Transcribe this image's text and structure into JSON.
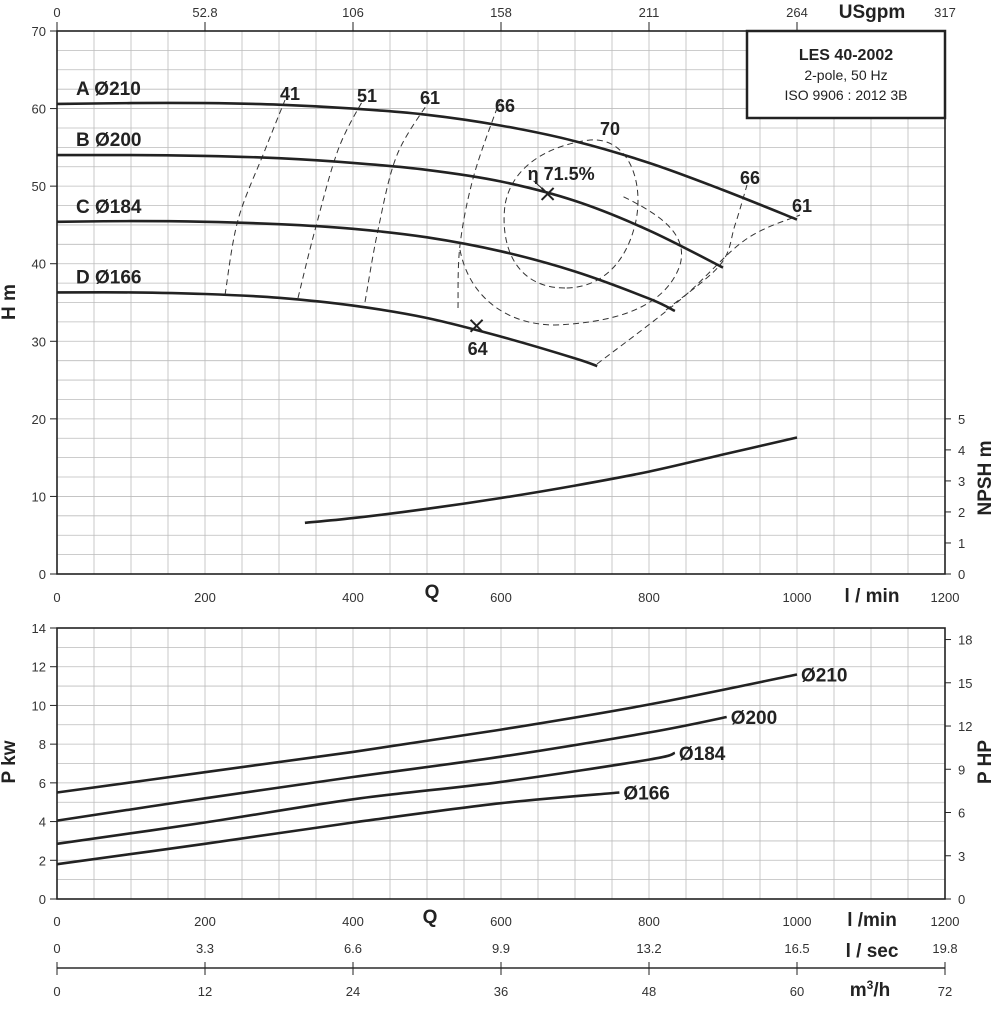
{
  "chart_data": [
    {
      "id": "head",
      "type": "line",
      "title_box": [
        "LES 40-2002",
        "2-pole, 50 Hz",
        "ISO 9906 : 2012 3B"
      ],
      "xlabel": "Q",
      "x_unit": "l / min",
      "ylabel": "H m",
      "y2label": "NPSH m",
      "xlim": [
        0,
        1200
      ],
      "ylim": [
        0,
        70
      ],
      "y2lim": [
        0,
        17.5
      ],
      "grid": true,
      "x_ticks": [
        0,
        200,
        400,
        600,
        800,
        1000,
        1200
      ],
      "y_ticks": [
        0,
        10,
        20,
        30,
        40,
        50,
        60,
        70
      ],
      "y2_ticks": [
        0,
        1,
        2,
        3,
        4,
        5
      ],
      "top_axis": {
        "unit": "USgpm",
        "ticks": [
          "0",
          "52.8",
          "106",
          "158",
          "211",
          "264",
          "317"
        ]
      },
      "series": [
        {
          "name": "A Ø210",
          "x": [
            0,
            100,
            200,
            300,
            400,
            500,
            600,
            700,
            800,
            900,
            1000
          ],
          "y": [
            60.6,
            60.7,
            60.7,
            60.5,
            60.0,
            59.2,
            57.8,
            55.8,
            53.0,
            49.5,
            45.7
          ]
        },
        {
          "name": "B Ø200",
          "x": [
            0,
            100,
            200,
            300,
            400,
            500,
            600,
            700,
            800,
            900
          ],
          "y": [
            54.0,
            54.0,
            53.9,
            53.6,
            53.0,
            52.1,
            50.6,
            48.1,
            44.3,
            39.5
          ]
        },
        {
          "name": "C Ø184",
          "x": [
            0,
            100,
            200,
            300,
            400,
            500,
            600,
            700,
            800,
            835
          ],
          "y": [
            45.4,
            45.5,
            45.4,
            45.1,
            44.5,
            43.4,
            41.6,
            39.0,
            35.5,
            33.9
          ]
        },
        {
          "name": "D Ø166",
          "x": [
            0,
            100,
            200,
            300,
            400,
            500,
            600,
            700,
            730
          ],
          "y": [
            36.3,
            36.3,
            36.1,
            35.6,
            34.6,
            33.0,
            30.6,
            27.8,
            26.8
          ]
        }
      ],
      "npsh": {
        "x": [
          335,
          400,
          500,
          600,
          700,
          800,
          900,
          1000
        ],
        "y": [
          1.65,
          1.8,
          2.1,
          2.45,
          2.85,
          3.3,
          3.85,
          4.4
        ]
      },
      "efficiency_labels": [
        "41",
        "51",
        "61",
        "66",
        "70",
        "66",
        "61"
      ],
      "best_efficiency": {
        "label": "η 71.5%",
        "x": 663,
        "y": 49
      },
      "marker": {
        "label": "64",
        "x": 567,
        "y": 32
      }
    },
    {
      "id": "power",
      "type": "line",
      "xlabel": "Q",
      "ylabel": "P kw",
      "y2label": "P HP",
      "xlim": [
        0,
        1200
      ],
      "ylim": [
        0,
        14
      ],
      "y2lim": [
        0,
        18.8
      ],
      "grid": true,
      "x_ticks": [
        0,
        200,
        400,
        600,
        800,
        1000,
        1200
      ],
      "y_ticks": [
        0,
        2,
        4,
        6,
        8,
        10,
        12,
        14
      ],
      "y2_ticks": [
        0,
        3,
        6,
        9,
        12,
        15,
        18
      ],
      "series": [
        {
          "name": "Ø210",
          "x": [
            0,
            200,
            400,
            600,
            800,
            1000
          ],
          "y": [
            5.5,
            6.55,
            7.6,
            8.75,
            10.05,
            11.6
          ]
        },
        {
          "name": "Ø200",
          "x": [
            0,
            200,
            400,
            600,
            800,
            905
          ],
          "y": [
            4.05,
            5.2,
            6.3,
            7.35,
            8.6,
            9.4
          ]
        },
        {
          "name": "Ø184",
          "x": [
            0,
            200,
            400,
            600,
            800,
            835
          ],
          "y": [
            2.85,
            3.95,
            5.15,
            6.05,
            7.2,
            7.55
          ]
        },
        {
          "name": "Ø166",
          "x": [
            0,
            200,
            400,
            600,
            760
          ],
          "y": [
            1.8,
            2.85,
            3.95,
            4.95,
            5.5
          ]
        }
      ]
    }
  ],
  "bottom_axes": {
    "q_label": "Q",
    "lmin_unit": "l /min",
    "lsec": {
      "unit": "l / sec",
      "ticks": [
        "0",
        "3.3",
        "6.6",
        "9.9",
        "13.2",
        "16.5",
        "19.8"
      ]
    },
    "m3h": {
      "unit_base": "m",
      "unit_sup": "3",
      "unit_tail": "/h",
      "ticks": [
        "0",
        "12",
        "24",
        "36",
        "48",
        "60",
        "72"
      ]
    }
  }
}
